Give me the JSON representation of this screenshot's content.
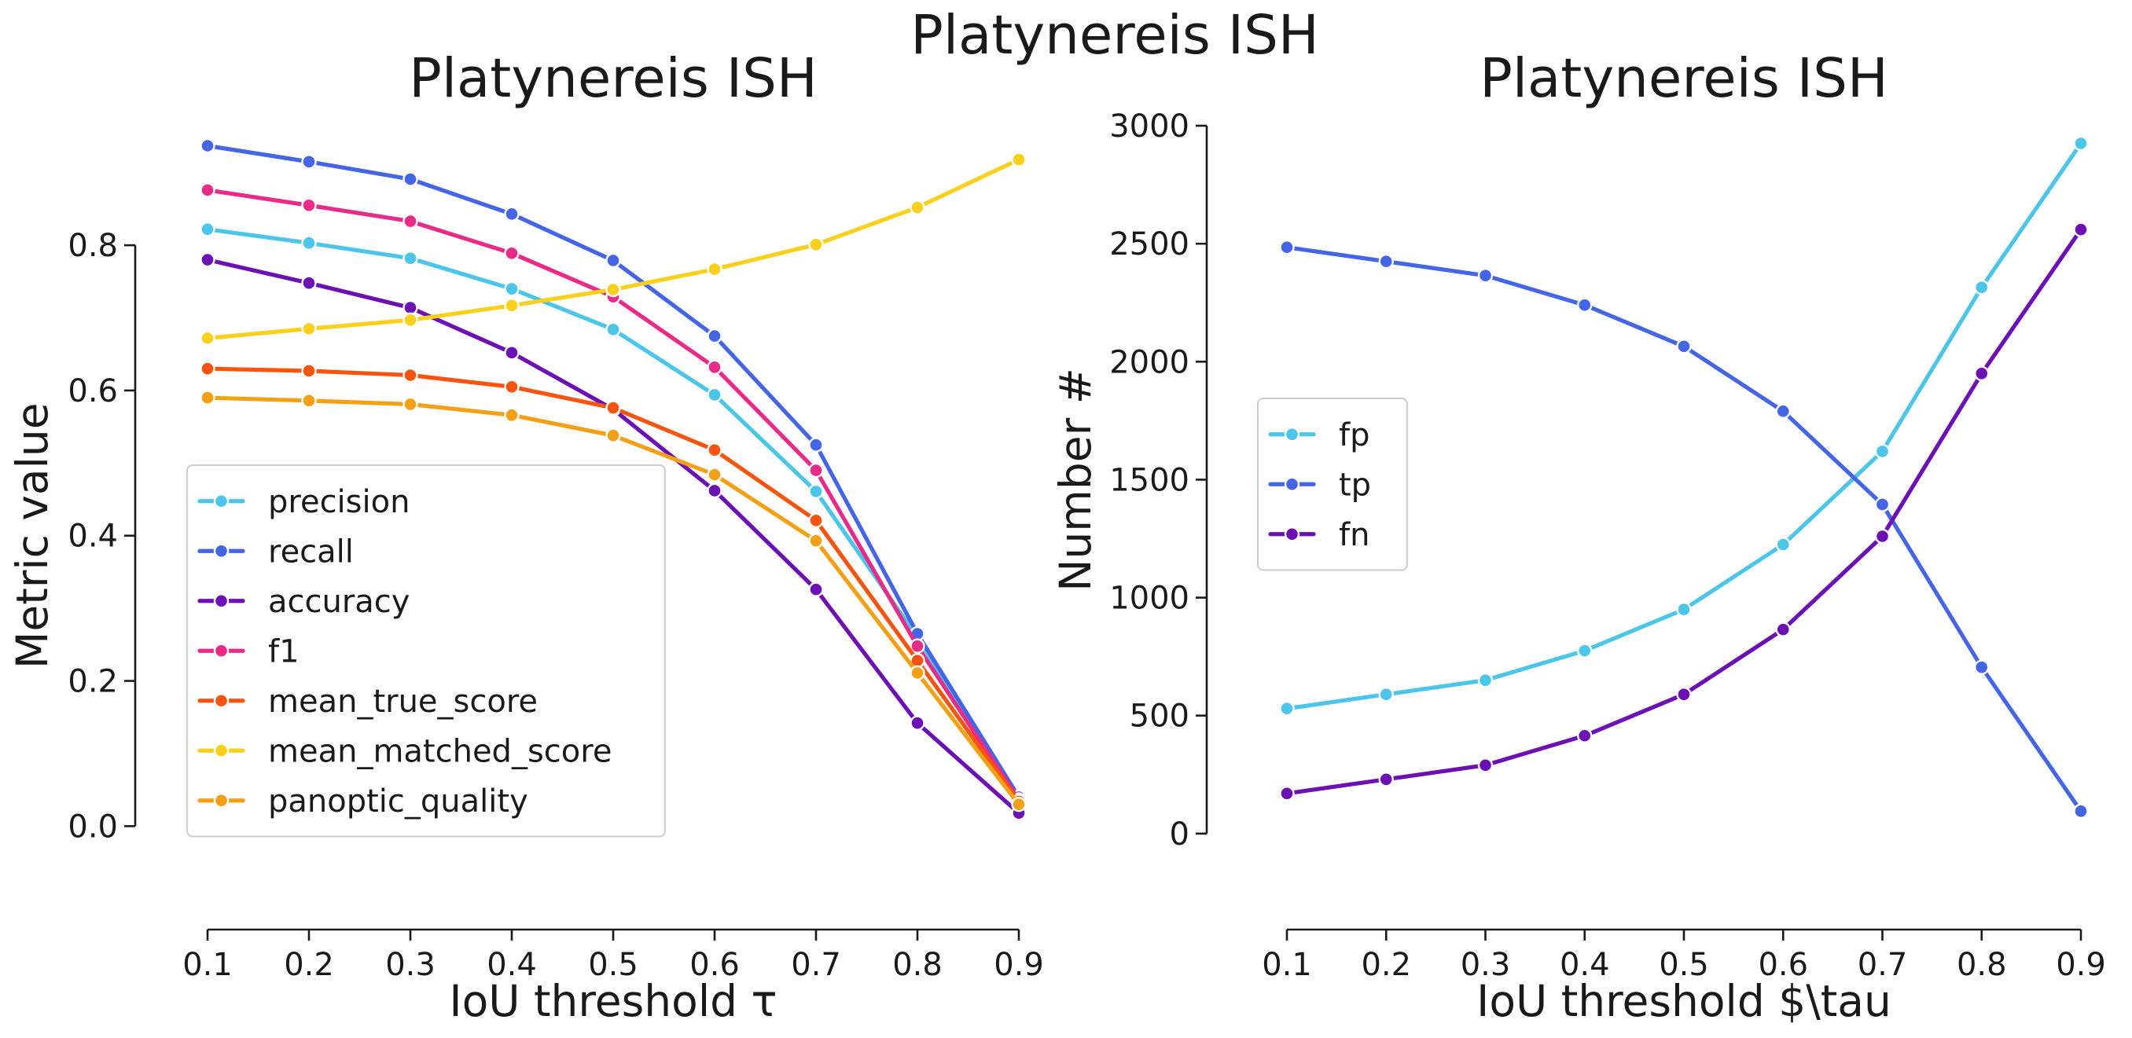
{
  "figure": {
    "suptitle": "Platynereis ISH"
  },
  "chart_data": [
    {
      "type": "line",
      "title": "Platynereis ISH",
      "xlabel": "IoU threshold τ",
      "ylabel": "Metric value",
      "x": [
        0.1,
        0.2,
        0.3,
        0.4,
        0.5,
        0.6,
        0.7,
        0.8,
        0.9
      ],
      "x_tick_labels": [
        "0.1",
        "0.2",
        "0.3",
        "0.4",
        "0.5",
        "0.6",
        "0.7",
        "0.8",
        "0.9"
      ],
      "y_ticks": [
        0.0,
        0.2,
        0.4,
        0.6,
        0.8
      ],
      "y_tick_labels": [
        "0.0",
        "0.2",
        "0.4",
        "0.6",
        "0.8"
      ],
      "ylim": [
        -0.15,
        0.97
      ],
      "grid": false,
      "legend_position": "lower-left",
      "series": [
        {
          "name": "precision",
          "color": "#4cc5ea",
          "values": [
            0.822,
            0.803,
            0.782,
            0.74,
            0.684,
            0.594,
            0.461,
            0.26,
            0.035
          ]
        },
        {
          "name": "recall",
          "color": "#4465e6",
          "values": [
            0.937,
            0.915,
            0.891,
            0.843,
            0.779,
            0.675,
            0.525,
            0.265,
            0.04
          ]
        },
        {
          "name": "accuracy",
          "color": "#6c10b6",
          "values": [
            0.78,
            0.748,
            0.714,
            0.652,
            0.574,
            0.462,
            0.326,
            0.142,
            0.018
          ]
        },
        {
          "name": "f1",
          "color": "#ea2a88",
          "values": [
            0.876,
            0.855,
            0.833,
            0.789,
            0.729,
            0.632,
            0.49,
            0.248,
            0.036
          ]
        },
        {
          "name": "mean_true_score",
          "color": "#f95310",
          "values": [
            0.63,
            0.627,
            0.621,
            0.605,
            0.576,
            0.518,
            0.421,
            0.228,
            0.034
          ]
        },
        {
          "name": "mean_matched_score",
          "color": "#fad01c",
          "values": [
            0.672,
            0.685,
            0.697,
            0.717,
            0.739,
            0.767,
            0.801,
            0.852,
            0.918
          ]
        },
        {
          "name": "panoptic_quality",
          "color": "#f3a014",
          "values": [
            0.59,
            0.586,
            0.581,
            0.566,
            0.538,
            0.484,
            0.393,
            0.211,
            0.03
          ]
        }
      ]
    },
    {
      "type": "line",
      "title": "Platynereis ISH",
      "xlabel": "IoU threshold $\\tau",
      "ylabel": "Number #",
      "x": [
        0.1,
        0.2,
        0.3,
        0.4,
        0.5,
        0.6,
        0.7,
        0.8,
        0.9
      ],
      "x_tick_labels": [
        "0.1",
        "0.2",
        "0.3",
        "0.4",
        "0.5",
        "0.6",
        "0.7",
        "0.8",
        "0.9"
      ],
      "y_ticks": [
        0,
        500,
        1000,
        1500,
        2000,
        2500,
        3000
      ],
      "y_tick_labels": [
        "0",
        "500",
        "1000",
        "1500",
        "2000",
        "2500",
        "3000"
      ],
      "ylim": [
        -430,
        3000
      ],
      "grid": false,
      "legend_position": "center-left",
      "series": [
        {
          "name": "fp",
          "color": "#4cc5ea",
          "values": [
            530,
            590,
            650,
            775,
            950,
            1225,
            1620,
            2315,
            2925
          ]
        },
        {
          "name": "tp",
          "color": "#4465e6",
          "values": [
            2485,
            2425,
            2365,
            2240,
            2065,
            1790,
            1395,
            705,
            95
          ]
        },
        {
          "name": "fn",
          "color": "#6c10b6",
          "values": [
            170,
            230,
            290,
            415,
            590,
            865,
            1260,
            1950,
            2560
          ]
        }
      ]
    }
  ]
}
